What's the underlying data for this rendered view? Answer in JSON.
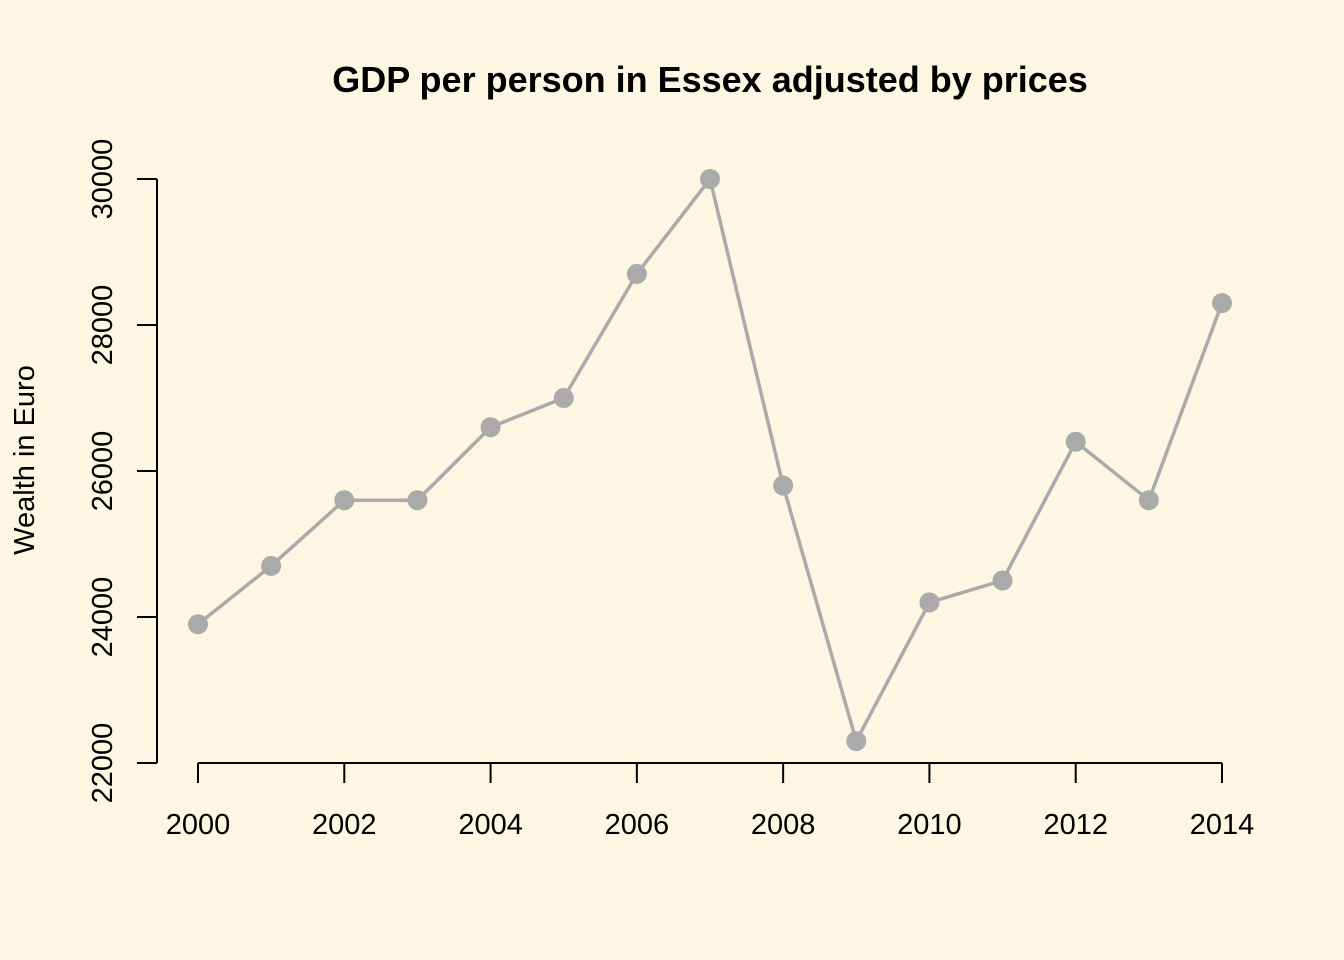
{
  "colors": {
    "background": "#fdf6e3",
    "series": "#aaaaaa",
    "axis": "#000000"
  },
  "chart_data": {
    "type": "line",
    "title": "GDP per person in Essex adjusted by prices",
    "xlabel": "",
    "ylabel": "Wealth in Euro",
    "x": [
      2000,
      2001,
      2002,
      2003,
      2004,
      2005,
      2006,
      2007,
      2008,
      2009,
      2010,
      2011,
      2012,
      2013,
      2014
    ],
    "series": [
      {
        "values": [
          23900,
          24700,
          25600,
          25600,
          26600,
          27000,
          28700,
          30000,
          25800,
          22300,
          24200,
          24500,
          26400,
          25600,
          28300
        ]
      }
    ],
    "xticks": [
      "2000",
      "2002",
      "2004",
      "2006",
      "2008",
      "2010",
      "2012",
      "2014"
    ],
    "yticks": [
      "22000",
      "24000",
      "26000",
      "28000",
      "30000"
    ],
    "xlim": [
      2000,
      2014
    ],
    "ylim": [
      22000,
      30000
    ],
    "markers": "filled-circle",
    "grid": false,
    "legend": "none"
  }
}
